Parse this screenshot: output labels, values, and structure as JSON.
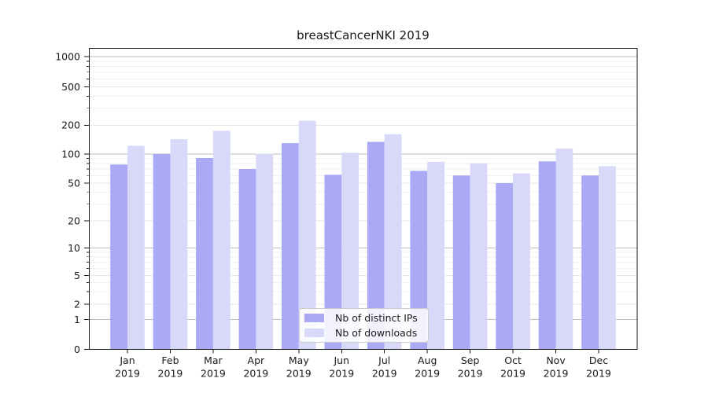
{
  "chart_data": {
    "type": "bar",
    "title": "breastCancerNKI 2019",
    "months": [
      "Jan",
      "Feb",
      "Mar",
      "Apr",
      "May",
      "Jun",
      "Jul",
      "Aug",
      "Sep",
      "Oct",
      "Nov",
      "Dec"
    ],
    "year": "2019",
    "categories": [
      "Jan 2019",
      "Feb 2019",
      "Mar 2019",
      "Apr 2019",
      "May 2019",
      "Jun 2019",
      "Jul 2019",
      "Aug 2019",
      "Sep 2019",
      "Oct 2019",
      "Nov 2019",
      "Dec 2019"
    ],
    "series": [
      {
        "name": "Nb of distinct IPs",
        "color": "#a9a9f6",
        "values": [
          78,
          100,
          91,
          70,
          130,
          61,
          134,
          67,
          60,
          50,
          84,
          60
        ]
      },
      {
        "name": "Nb of downloads",
        "color": "#d8d8f9",
        "values": [
          122,
          143,
          175,
          101,
          222,
          103,
          161,
          83,
          80,
          63,
          114,
          75
        ]
      }
    ],
    "xlabel": "",
    "ylabel": "",
    "yscale": "symlog",
    "ylim": [
      0,
      1400
    ],
    "y_ticks": [
      0,
      1,
      2,
      5,
      10,
      20,
      50,
      100,
      200,
      500,
      1000
    ],
    "y_tick_labels": [
      "0",
      "1",
      "2",
      "5",
      "10",
      "20",
      "50",
      "100",
      "200",
      "500",
      "1000"
    ],
    "grid": true,
    "legend_position": "lower center"
  },
  "colors": {
    "background": "#ffffff",
    "axis": "#1a1a1a",
    "grid_decade": "#bdbdbd",
    "grid_labeled": "#e7e7e7",
    "grid_minor": "#f2f2f2",
    "legend_border": "#cccccc"
  }
}
